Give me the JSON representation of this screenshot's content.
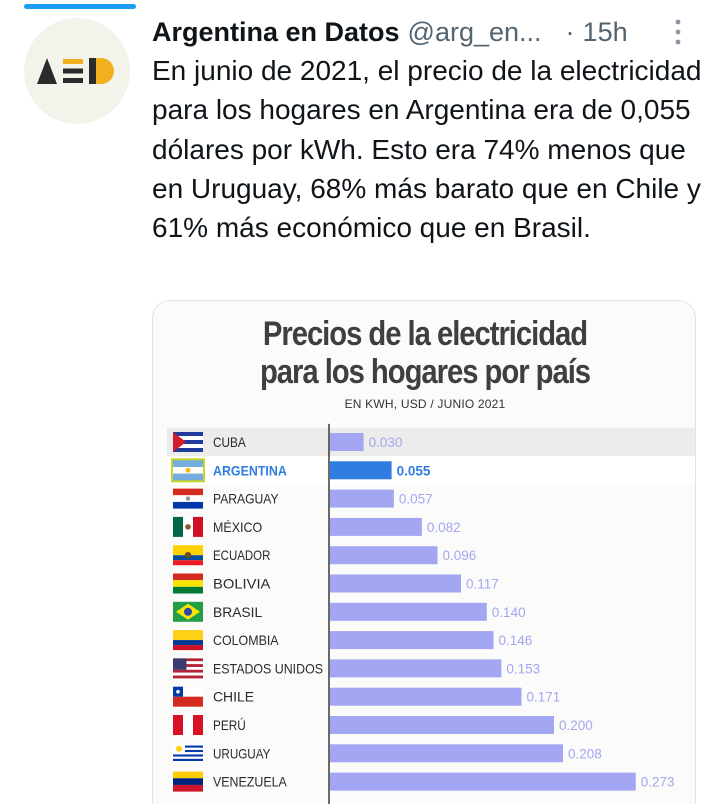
{
  "tweet": {
    "author_name": "Argentina en Datos",
    "handle": "@arg_en...",
    "separator": "·",
    "time": "15h",
    "text": "En junio de 2021, el precio de la electricidad para los hogares en Argentina era de 0,055 dólares por kWh. Esto era 74% menos que en Uruguay, 68% más barato que en Chile y 61% más económico que en Brasil.",
    "avatar_logo_text": "AED",
    "more_icon": "more-vertical-icon"
  },
  "colors": {
    "accent": "#1d9bf0",
    "bar": "#a3a6f3",
    "bar_highlight": "#2f7de1",
    "label_highlight": "#2f7de1",
    "row_band": "#ececea"
  },
  "chart_data": {
    "type": "bar",
    "orientation": "horizontal",
    "title_line1": "Precios de la electricidad",
    "title_line2": "para los hogares por país",
    "subtitle": "EN KWH, USD / JUNIO 2021",
    "categories": [
      "CUBA",
      "ARGENTINA",
      "PARAGUAY",
      "MÉXICO",
      "ECUADOR",
      "BOLIVIA",
      "BRASIL",
      "COLOMBIA",
      "ESTADOS UNIDOS",
      "CHILE",
      "PERÚ",
      "URUGUAY",
      "VENEZUELA"
    ],
    "value_labels": [
      "0.030",
      "0.055",
      "0.057",
      "0.082",
      "0.096",
      "0.117",
      "0.140",
      "0.146",
      "0.153",
      "0.171",
      "0.200",
      "0.208",
      "0.273"
    ],
    "values": [
      0.03,
      0.055,
      0.057,
      0.082,
      0.096,
      0.117,
      0.14,
      0.146,
      0.153,
      0.171,
      0.2,
      0.208,
      0.273
    ],
    "highlight": "ARGENTINA",
    "flags": [
      "cuba-flag-icon",
      "argentina-flag-icon",
      "paraguay-flag-icon",
      "mexico-flag-icon",
      "ecuador-flag-icon",
      "bolivia-flag-icon",
      "brasil-flag-icon",
      "colombia-flag-icon",
      "usa-flag-icon",
      "chile-flag-icon",
      "peru-flag-icon",
      "uruguay-flag-icon",
      "venezuela-flag-icon"
    ],
    "xlim": [
      0,
      0.3
    ],
    "grid": false
  }
}
